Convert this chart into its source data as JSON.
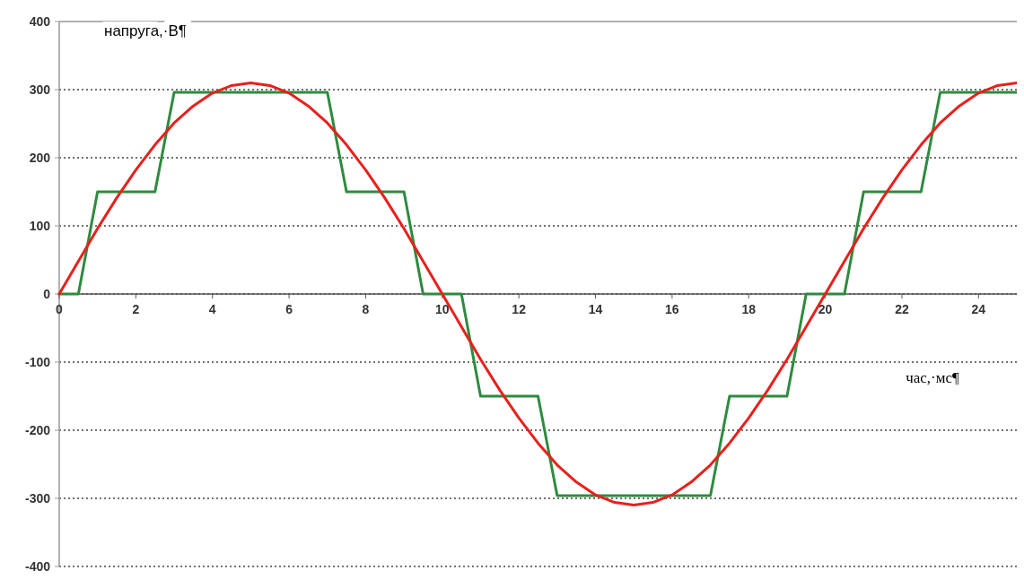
{
  "chart_data": {
    "type": "line",
    "xlabel": "час,·мс¶",
    "ylabel": "напруга,·В¶",
    "xlim": [
      0,
      25
    ],
    "xticks": [
      0,
      2,
      4,
      6,
      8,
      10,
      12,
      14,
      16,
      18,
      20,
      22,
      24
    ],
    "ylim": [
      -400,
      400
    ],
    "yticks": [
      -400,
      -300,
      -200,
      -100,
      0,
      100,
      200,
      300,
      400
    ],
    "grid": "y",
    "series": [
      {
        "color": "#2e8b3e",
        "x": [
          0,
          0.5,
          1,
          2.5,
          3,
          7,
          7.5,
          9,
          9.5,
          10.5,
          11,
          12.5,
          13,
          17,
          17.5,
          19,
          19.5,
          20.5,
          21,
          22.5,
          23,
          25
        ],
        "values": [
          0,
          0,
          150,
          150,
          296,
          296,
          150,
          150,
          0,
          0,
          -150,
          -150,
          -296,
          -296,
          -150,
          -150,
          0,
          0,
          150,
          150,
          296,
          296
        ]
      },
      {
        "color": "#e8201c",
        "x": [
          0,
          0.5,
          1,
          1.5,
          2,
          2.5,
          3,
          3.5,
          4,
          4.5,
          5,
          5.5,
          6,
          6.5,
          7,
          7.5,
          8,
          8.5,
          9,
          9.5,
          10,
          10.5,
          11,
          11.5,
          12,
          12.5,
          13,
          13.5,
          14,
          14.5,
          15,
          15.5,
          16,
          16.5,
          17,
          17.5,
          18,
          18.5,
          19,
          19.5,
          20,
          20.5,
          21,
          21.5,
          22,
          22.5,
          23,
          23.5,
          24,
          24.5,
          25
        ],
        "values": [
          0,
          48,
          96,
          141,
          182,
          219,
          251,
          276,
          295,
          306,
          310,
          306,
          295,
          276,
          251,
          219,
          182,
          141,
          96,
          48,
          0,
          -48,
          -96,
          -141,
          -182,
          -219,
          -251,
          -276,
          -295,
          -306,
          -310,
          -306,
          -295,
          -276,
          -251,
          -219,
          -182,
          -141,
          -96,
          -48,
          0,
          48,
          96,
          141,
          182,
          219,
          251,
          276,
          295,
          306,
          310
        ]
      }
    ]
  }
}
